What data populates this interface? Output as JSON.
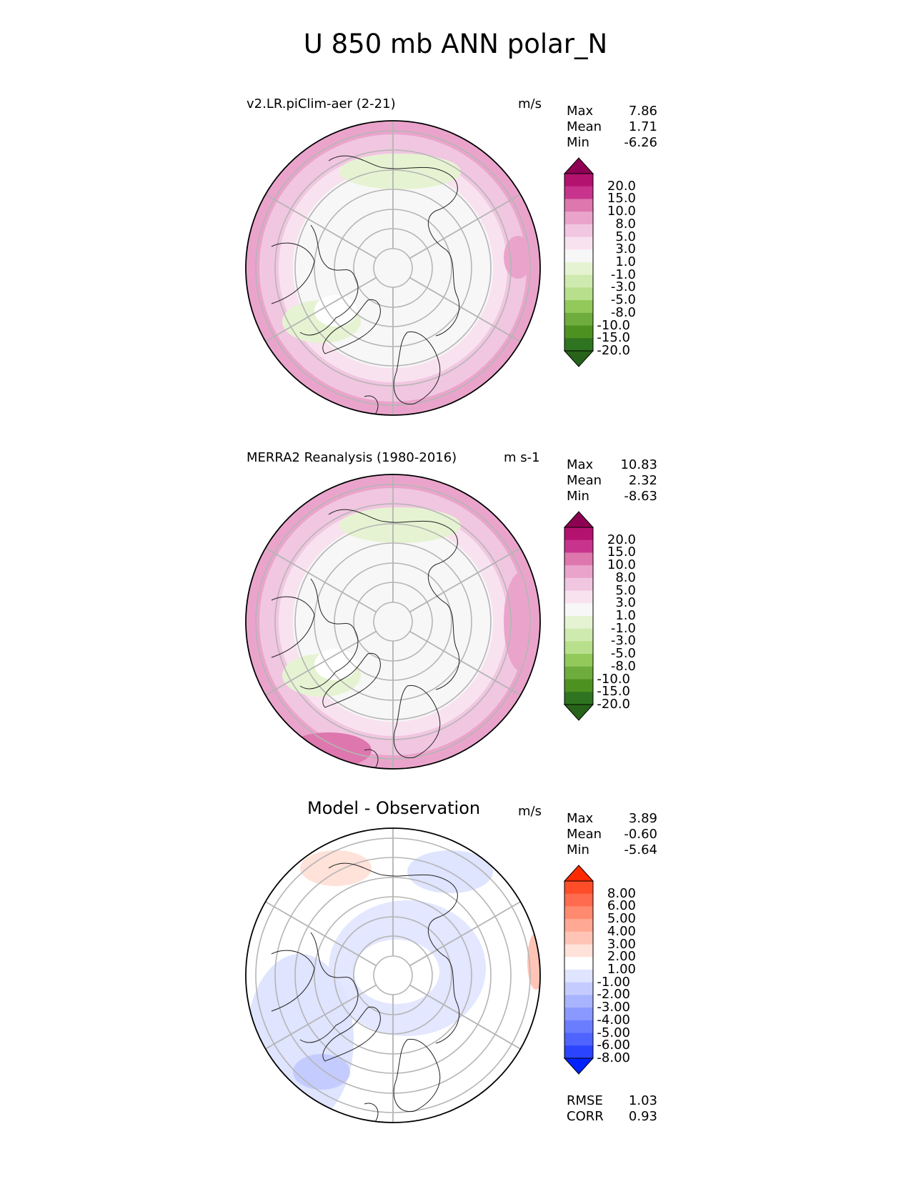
{
  "title": "U 850 mb ANN polar_N",
  "panels": [
    {
      "title": "v2.LR.piClim-aer (2-21)",
      "units": "m/s",
      "stats": {
        "max_label": "Max",
        "max": "7.86",
        "mean_label": "Mean",
        "mean": "1.71",
        "min_label": "Min",
        "min": "-6.26"
      },
      "colorbar": {
        "levels": [
          "20.0",
          "15.0",
          "10.0",
          "8.0",
          "5.0",
          "3.0",
          "1.0",
          "-1.0",
          "-3.0",
          "-5.0",
          "-8.0",
          "-10.0",
          "-15.0",
          "-20.0"
        ],
        "colors": [
          "#8e0152",
          "#b4126f",
          "#c8348d",
          "#de77ae",
          "#eaa4cb",
          "#f1c6e1",
          "#f9e2ef",
          "#f7f7f7",
          "#e6f3d2",
          "#cfeaae",
          "#b8df8b",
          "#92c95a",
          "#6fac3e",
          "#4d9221",
          "#2f7420",
          "#276419"
        ]
      }
    },
    {
      "title": "MERRA2 Reanalysis (1980-2016)",
      "units": "m s-1",
      "stats": {
        "max_label": "Max",
        "max": "10.83",
        "mean_label": "Mean",
        "mean": "2.32",
        "min_label": "Min",
        "min": "-8.63"
      },
      "colorbar": {
        "levels": [
          "20.0",
          "15.0",
          "10.0",
          "8.0",
          "5.0",
          "3.0",
          "1.0",
          "-1.0",
          "-3.0",
          "-5.0",
          "-8.0",
          "-10.0",
          "-15.0",
          "-20.0"
        ],
        "colors": [
          "#8e0152",
          "#b4126f",
          "#c8348d",
          "#de77ae",
          "#eaa4cb",
          "#f1c6e1",
          "#f9e2ef",
          "#f7f7f7",
          "#e6f3d2",
          "#cfeaae",
          "#b8df8b",
          "#92c95a",
          "#6fac3e",
          "#4d9221",
          "#2f7420",
          "#276419"
        ]
      }
    },
    {
      "title": "Model - Observation",
      "units": "m/s",
      "stats": {
        "max_label": "Max",
        "max": "3.89",
        "mean_label": "Mean",
        "mean": "-0.60",
        "min_label": "Min",
        "min": "-5.64"
      },
      "colorbar": {
        "levels": [
          "8.00",
          "6.00",
          "5.00",
          "4.00",
          "3.00",
          "2.00",
          "1.00",
          "-1.00",
          "-2.00",
          "-3.00",
          "-4.00",
          "-5.00",
          "-6.00",
          "-8.00"
        ],
        "colors": [
          "#ff2a00",
          "#ff4d2a",
          "#ff6b4f",
          "#ff8a70",
          "#ffa994",
          "#ffc4b6",
          "#ffe2d9",
          "#ffffff",
          "#dfe4ff",
          "#c4ccff",
          "#a8b4ff",
          "#8a99ff",
          "#6b7dff",
          "#4f63ff",
          "#2a44ff",
          "#0022ff"
        ]
      },
      "footer": {
        "rmse_label": "RMSE",
        "rmse": "1.03",
        "corr_label": "CORR",
        "corr": "0.93"
      }
    }
  ]
}
